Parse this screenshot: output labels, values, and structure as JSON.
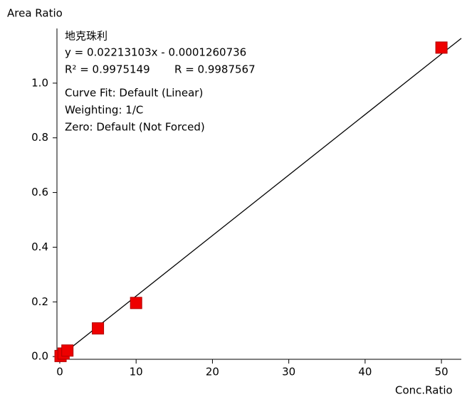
{
  "chart_data": {
    "type": "scatter",
    "y_label": "Area Ratio",
    "x_label": "Conc.Ratio",
    "annotation": [
      "地克珠利",
      "y = 0.02213103x - 0.0001260736"
    ],
    "r2_text": "R² = 0.9975149",
    "r_text": "R = 0.9987567",
    "fit_info": [
      "Curve Fit: Default (Linear)",
      "Weighting: 1/C",
      "Zero: Default (Not Forced)"
    ],
    "x": [
      0.1,
      0.5,
      1,
      5,
      10,
      50
    ],
    "values": [
      0.002,
      0.011,
      0.022,
      0.103,
      0.196,
      1.13
    ],
    "color": "#ee0000",
    "fit_line": {
      "x": [
        0,
        52.6
      ],
      "values": [
        -0.0001,
        1.164
      ],
      "color": "#000000"
    },
    "xlim": [
      -0.37,
      52.6
    ],
    "ylim": [
      -0.01,
      1.2
    ],
    "xticks": [
      0,
      10,
      20,
      30,
      40,
      50
    ],
    "yticks": [
      {
        "value": 0,
        "label": "0.0"
      },
      0.2,
      0.4,
      0.6,
      0.8,
      {
        "value": 1,
        "label": "1.0"
      }
    ]
  }
}
